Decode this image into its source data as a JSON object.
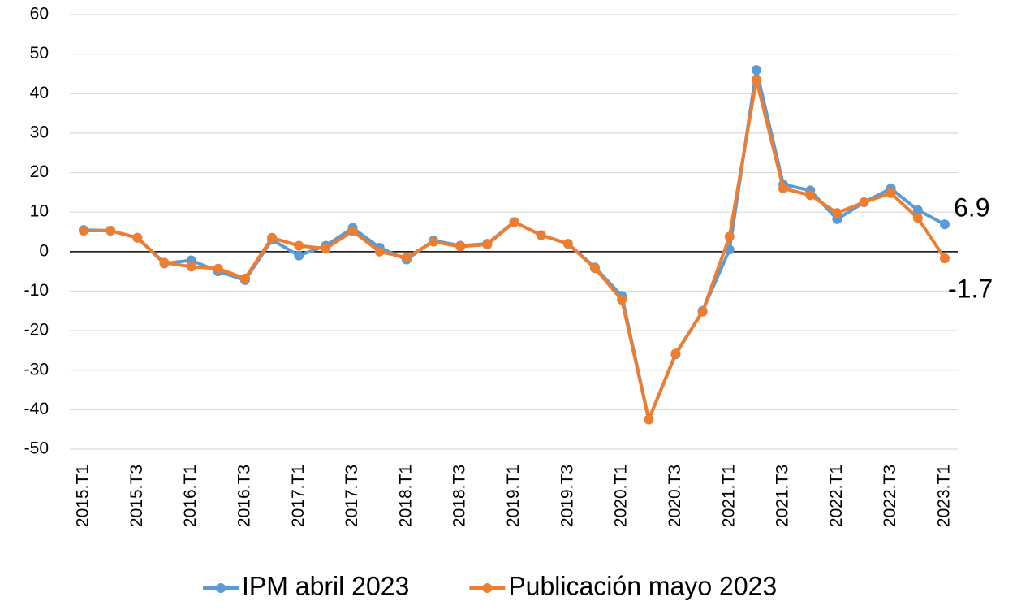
{
  "chart_data": {
    "type": "line",
    "categories": [
      "2015.T1",
      null,
      "2015.T3",
      null,
      "2016.T1",
      null,
      "2016.T3",
      null,
      "2017.T1",
      null,
      "2017.T3",
      null,
      "2018.T1",
      null,
      "2018.T3",
      null,
      "2019.T1",
      null,
      "2019.T3",
      null,
      "2020.T1",
      null,
      "2020.T3",
      null,
      "2021.T1",
      null,
      "2021.T3",
      null,
      "2022.T1",
      null,
      "2022.T3",
      null,
      "2023.T1"
    ],
    "series": [
      {
        "name": "IPM abril 2023",
        "color": "#5b9bd5",
        "label_color": "#4472c4",
        "values": [
          5.5,
          5.3,
          3.5,
          -3,
          -2.2,
          -5,
          -7.2,
          3,
          -1,
          1.5,
          6,
          1,
          -2,
          2.8,
          1.5,
          2,
          7.5,
          4.2,
          2,
          -4,
          -11.2,
          -42.5,
          -26,
          -15,
          0.5,
          46,
          17,
          15.5,
          8.2,
          12.5,
          16,
          10.5,
          6.9
        ]
      },
      {
        "name": "Publicación mayo 2023",
        "color": "#ed7d31",
        "label_color": "#ed7d31",
        "values": [
          5.3,
          5.3,
          3.5,
          -2.8,
          -3.8,
          -4.3,
          -6.8,
          3.5,
          1.5,
          0.8,
          5.2,
          0,
          -1.5,
          2.5,
          1.3,
          1.8,
          7.5,
          4.2,
          2,
          -4.2,
          -12.2,
          -42.5,
          -25.8,
          -15.2,
          3.8,
          43.5,
          16,
          14.3,
          9.8,
          12.5,
          14.8,
          8.5,
          -1.7
        ]
      }
    ],
    "ylim": [
      -50,
      60
    ],
    "yticks": [
      -50,
      -40,
      -30,
      -20,
      -10,
      0,
      10,
      20,
      30,
      40,
      50,
      60
    ],
    "grid": true,
    "legend": "bottom"
  }
}
